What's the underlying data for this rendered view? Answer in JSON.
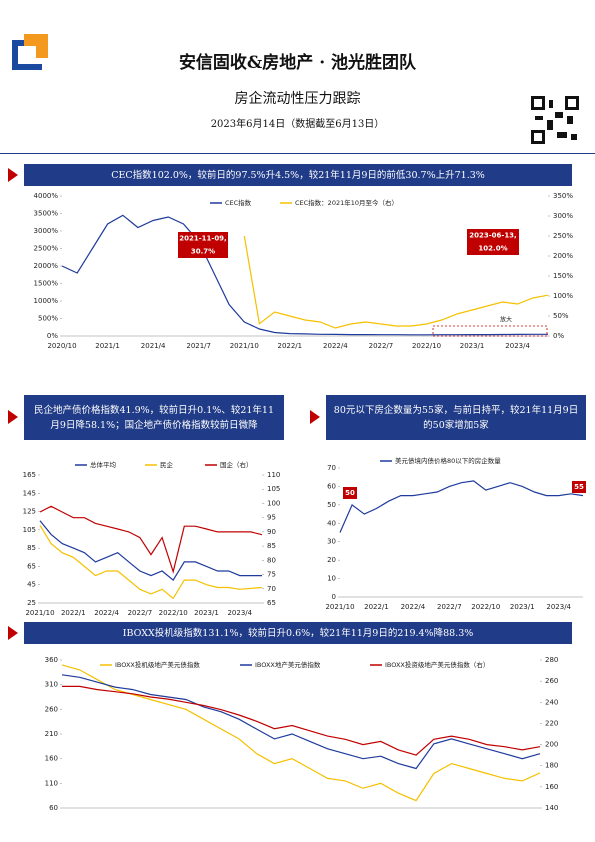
{
  "header": {
    "team": "安信固收&房地产 · 池光胜团队",
    "report": "房企流动性压力跟踪",
    "date": "2023年6月14日（数据截至6月13日）"
  },
  "chart_data": [
    {
      "type": "line",
      "title": "CEC指数102.0%，较前日的97.5%升4.5%，较21年11月9日的前低30.7%上升71.3%",
      "categories": [
        "2020/10",
        null,
        null,
        "2021/1",
        null,
        null,
        "2021/4",
        null,
        null,
        "2021/7",
        null,
        null,
        "2021/10",
        null,
        null,
        "2022/1",
        null,
        null,
        "2022/4",
        null,
        null,
        "2022/7",
        null,
        null,
        "2022/10",
        null,
        null,
        "2023/1",
        null,
        null,
        "2023/4",
        null,
        null
      ],
      "series": [
        {
          "name": "CEC指数",
          "color": "#1f3b9c",
          "values": [
            2000,
            1800,
            2500,
            3200,
            3450,
            3100,
            3300,
            3400,
            3200,
            2700,
            1800,
            900,
            400,
            200,
            100,
            70,
            60,
            50,
            45,
            40,
            40,
            38,
            36,
            35,
            35,
            36,
            38,
            40,
            40,
            42,
            45,
            48,
            50
          ]
        },
        {
          "name": "CEC指数：2021年10月至今（右）",
          "color": "#f5c000",
          "axis": "y2",
          "values": [
            null,
            null,
            null,
            null,
            null,
            null,
            null,
            null,
            null,
            null,
            null,
            null,
            250,
            30.7,
            60,
            50,
            40,
            35,
            20,
            30,
            35,
            30,
            25,
            25,
            30,
            40,
            55,
            65,
            75,
            85,
            80,
            95,
            102
          ]
        }
      ],
      "ylim": [
        0,
        4000
      ],
      "yticks": [
        {
          "value": 0,
          "label": "0%"
        },
        {
          "value": 500,
          "label": "500%"
        },
        {
          "value": 1000,
          "label": "1000%"
        },
        {
          "value": 1500,
          "label": "1500%"
        },
        {
          "value": 2000,
          "label": "2000%"
        },
        {
          "value": 2500,
          "label": "2500%"
        },
        {
          "value": 3000,
          "label": "3000%"
        },
        {
          "value": 3500,
          "label": "3500%"
        },
        {
          "value": 4000,
          "label": "4000%"
        }
      ],
      "y2lim": [
        0,
        350
      ],
      "y2ticks": [
        {
          "value": 0,
          "label": "0%"
        },
        {
          "value": 50,
          "label": "50%"
        },
        {
          "value": 100,
          "label": "100%"
        },
        {
          "value": 150,
          "label": "150%"
        },
        {
          "value": 200,
          "label": "200%"
        },
        {
          "value": 250,
          "label": "250%"
        },
        {
          "value": 300,
          "label": "300%"
        },
        {
          "value": 350,
          "label": "350%"
        }
      ],
      "annotations": [
        {
          "lines": [
            "2021-11-09,",
            "30.7%"
          ]
        },
        {
          "lines": [
            "2023-06-13,",
            "102.0%"
          ]
        },
        {
          "lines": [
            "放大"
          ]
        }
      ]
    },
    {
      "type": "line",
      "title": "民企地产债价格指数41.9%，较前日升0.1%、较21年11月9日降58.1%；国企地产债价格指数较前日微降",
      "categories": [
        "2021/10",
        null,
        null,
        "2022/1",
        null,
        null,
        "2022/4",
        null,
        null,
        "2022/7",
        null,
        null,
        "2022/10",
        null,
        null,
        "2023/1",
        null,
        null,
        "2023/4",
        null,
        null
      ],
      "series": [
        {
          "name": "总体平均",
          "color": "#1f3b9c",
          "values": [
            115,
            100,
            90,
            85,
            80,
            70,
            75,
            80,
            70,
            60,
            55,
            60,
            50,
            70,
            70,
            65,
            60,
            60,
            55,
            55,
            55
          ]
        },
        {
          "name": "民企",
          "color": "#f5c000",
          "values": [
            110,
            90,
            80,
            75,
            65,
            55,
            60,
            60,
            50,
            40,
            35,
            40,
            30,
            50,
            50,
            45,
            42,
            42,
            40,
            41,
            41.9
          ]
        },
        {
          "name": "国企（右）",
          "color": "#c00000",
          "axis": "y2",
          "values": [
            97,
            99,
            97,
            95,
            95,
            93,
            92,
            91,
            90,
            88,
            82,
            88,
            76,
            92,
            92,
            91,
            90,
            90,
            90,
            90,
            89
          ]
        }
      ],
      "ylim": [
        25,
        165
      ],
      "yticks": [
        25,
        45,
        65,
        85,
        105,
        125,
        145,
        165
      ],
      "y2lim": [
        65,
        110
      ],
      "y2ticks": [
        65,
        70,
        75,
        80,
        85,
        90,
        95,
        100,
        105,
        110
      ],
      "annotations": []
    },
    {
      "type": "line",
      "title": "80元以下房企数量为55家，与前日持平，较21年11月9日的50家增加5家",
      "categories": [
        "2021/10",
        null,
        null,
        "2022/1",
        null,
        null,
        "2022/4",
        null,
        null,
        "2022/7",
        null,
        null,
        "2022/10",
        null,
        null,
        "2023/1",
        null,
        null,
        "2023/4",
        null,
        null
      ],
      "series": [
        {
          "name": "美元债境内债价格80以下的房企数量",
          "color": "#1f3b9c",
          "values": [
            35,
            50,
            45,
            48,
            52,
            55,
            55,
            56,
            57,
            60,
            62,
            63,
            58,
            60,
            62,
            60,
            57,
            55,
            55,
            56,
            55
          ]
        }
      ],
      "ylim": [
        0,
        70
      ],
      "yticks": [
        0,
        10,
        20,
        30,
        40,
        50,
        60,
        70
      ],
      "annotations": [
        {
          "lines": [
            "50"
          ]
        },
        {
          "lines": [
            "55"
          ]
        }
      ]
    },
    {
      "type": "line",
      "title": "IBOXX投机级指数131.1%，较前日升0.6%，较21年11月9日的219.4%降88.3%",
      "series": [
        {
          "name": "IBOXX投机级地产美元债指数",
          "color": "#f5c000",
          "values": [
            350,
            340,
            320,
            300,
            290,
            280,
            270,
            260,
            240,
            220,
            200,
            170,
            150,
            160,
            140,
            120,
            115,
            100,
            110,
            90,
            75,
            130,
            150,
            140,
            130,
            120,
            115,
            131.1
          ]
        },
        {
          "name": "IBOXX地产美元债指数",
          "color": "#1f3b9c",
          "values": [
            330,
            325,
            315,
            305,
            300,
            290,
            285,
            280,
            265,
            255,
            240,
            220,
            200,
            210,
            195,
            180,
            170,
            160,
            165,
            150,
            140,
            190,
            200,
            190,
            180,
            170,
            160,
            170
          ]
        },
        {
          "name": "IBOXX投资级地产美元债指数（右）",
          "color": "#c00000",
          "axis": "y2",
          "values": [
            255,
            255,
            252,
            250,
            248,
            245,
            243,
            240,
            237,
            233,
            228,
            222,
            215,
            218,
            213,
            208,
            205,
            200,
            203,
            195,
            190,
            205,
            208,
            205,
            200,
            198,
            195,
            198
          ]
        }
      ],
      "ylim": [
        60,
        360
      ],
      "yticks": [
        60,
        110,
        160,
        210,
        260,
        310,
        360
      ],
      "y2lim": [
        140,
        280
      ],
      "y2ticks": [
        140,
        160,
        180,
        200,
        220,
        240,
        260,
        280
      ],
      "annotations": []
    }
  ]
}
